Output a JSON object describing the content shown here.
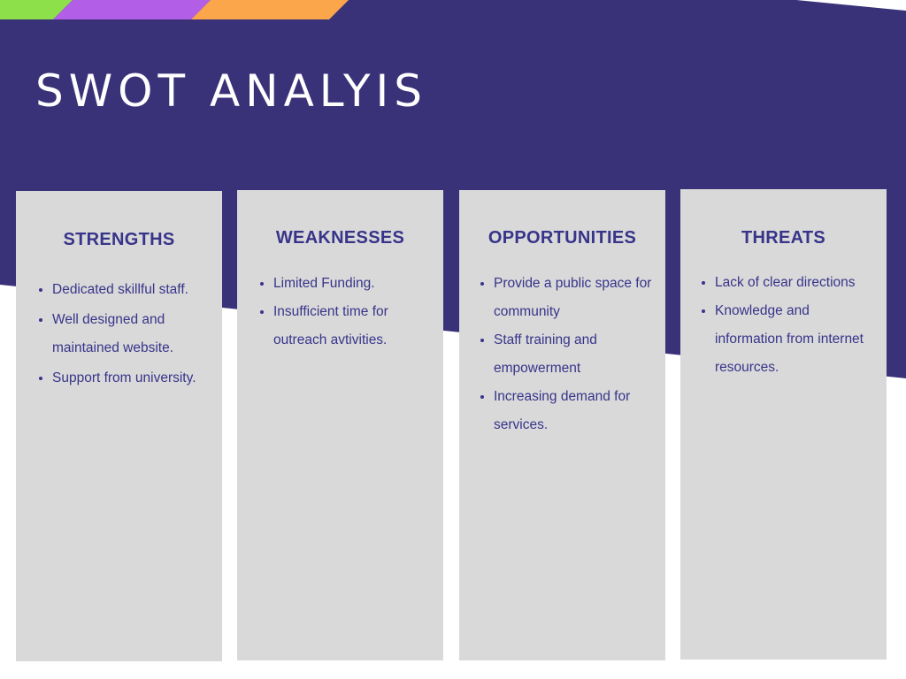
{
  "title": "SWOT ANALYIS",
  "colors": {
    "header_bg": "#3a3278",
    "stripe_green": "#8ee04a",
    "stripe_purple": "#b35ee6",
    "stripe_orange": "#fba64a",
    "card_bg": "#d9d9d9",
    "card_text": "#38348a"
  },
  "cards": [
    {
      "heading": "STRENGTHS",
      "items": [
        "Dedicated skillful staff.",
        "Well designed and maintained website.",
        "Support from university."
      ]
    },
    {
      "heading": "WEAKNESSES",
      "items": [
        "Limited Funding.",
        "Insufficient time for outreach avtivities."
      ]
    },
    {
      "heading": "OPPORTUNITIES",
      "items": [
        "Provide a public space for community",
        "Staff training and empowerment",
        "Increasing demand for services."
      ]
    },
    {
      "heading": "THREATS",
      "items": [
        "Lack of clear directions",
        "Knowledge and information from internet resources."
      ]
    }
  ]
}
